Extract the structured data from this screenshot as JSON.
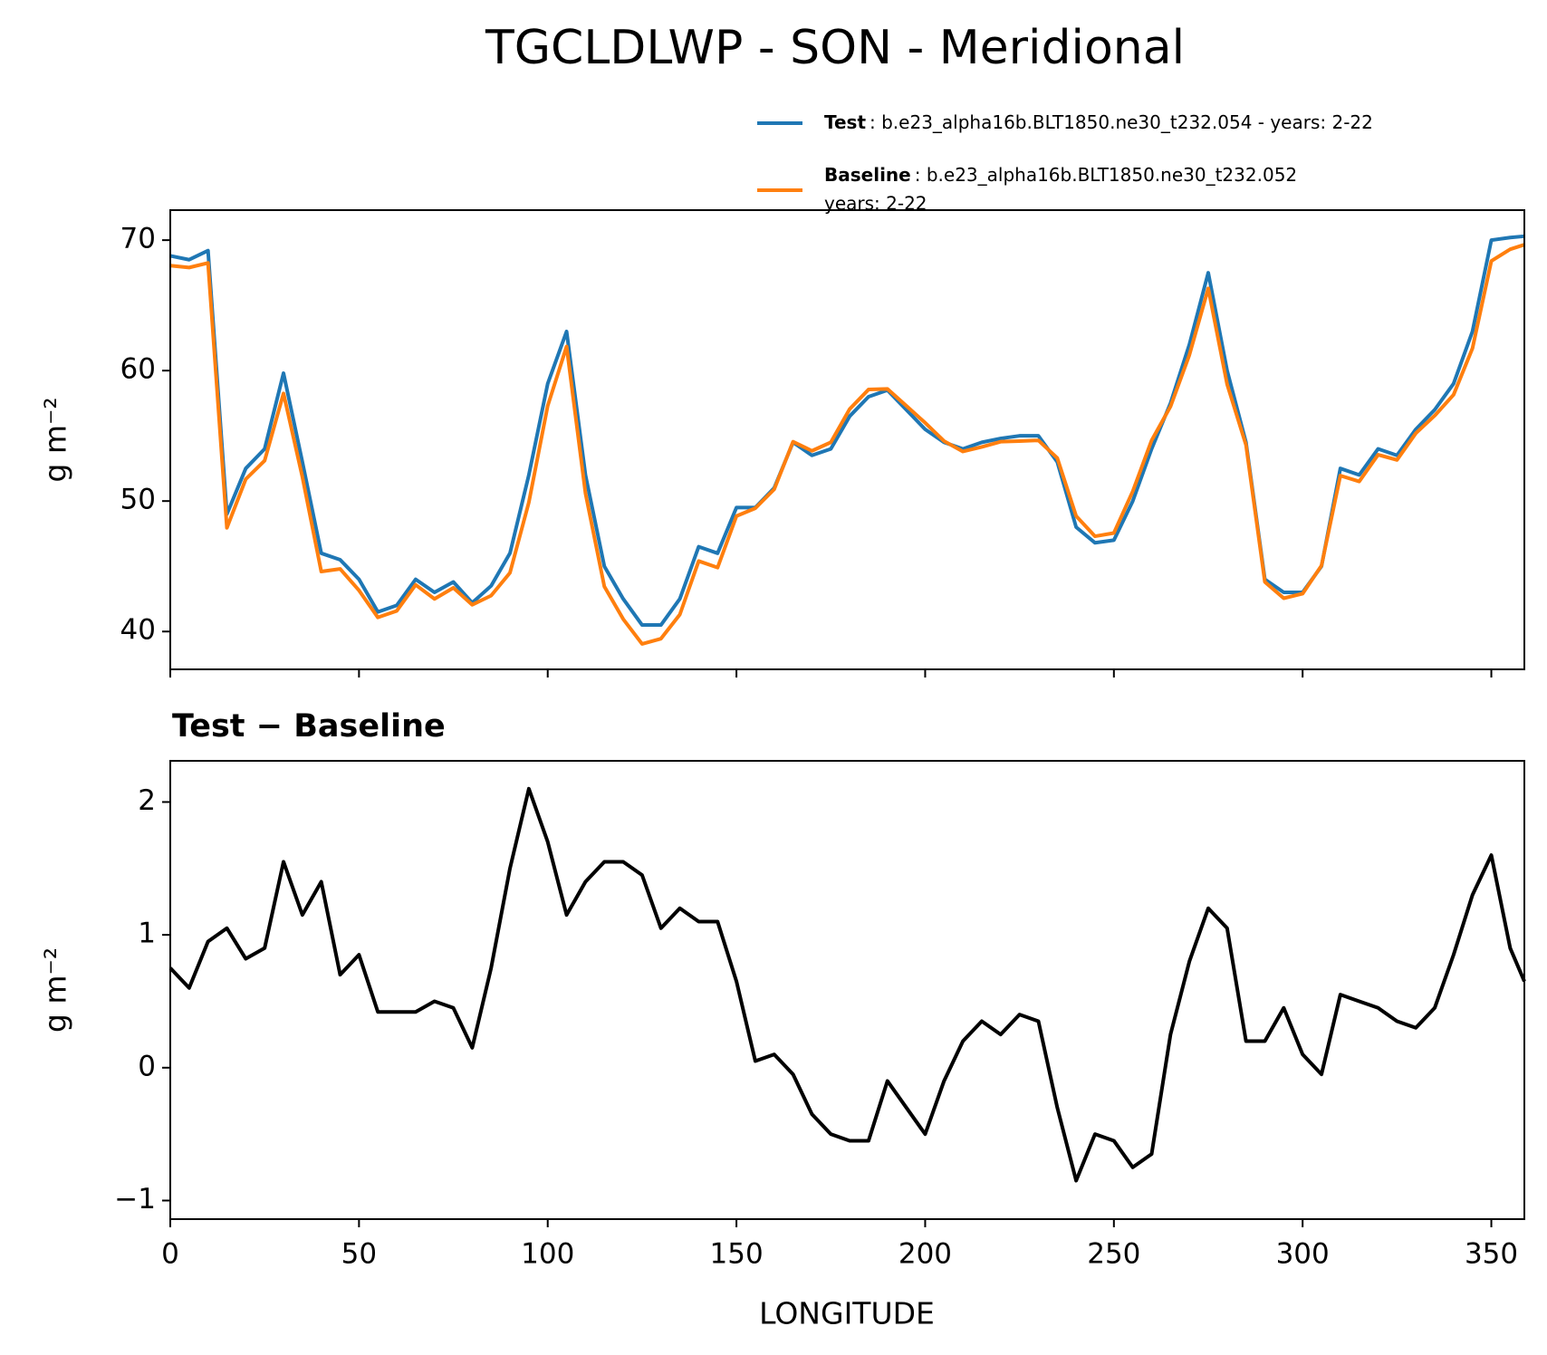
{
  "chart_data": [
    {
      "type": "line",
      "title": "TGCLDLWP - SON - Meridional",
      "ylabel": "g m⁻²",
      "x": [
        0,
        5,
        10,
        15,
        20,
        25,
        30,
        35,
        40,
        45,
        50,
        55,
        60,
        65,
        70,
        75,
        80,
        85,
        90,
        95,
        100,
        105,
        110,
        115,
        120,
        125,
        130,
        135,
        140,
        145,
        150,
        155,
        160,
        165,
        170,
        175,
        180,
        185,
        190,
        195,
        200,
        205,
        210,
        215,
        220,
        225,
        230,
        235,
        240,
        245,
        250,
        255,
        260,
        265,
        270,
        275,
        280,
        285,
        290,
        295,
        300,
        305,
        310,
        315,
        320,
        325,
        330,
        335,
        340,
        345,
        350,
        355,
        358.75
      ],
      "series": [
        {
          "name": "Test",
          "description": [
            ": b.e23_alpha16b.BLT1850.ne30_t232.054 - years: 2-22"
          ],
          "color": "#1f77b4",
          "values": [
            68.8,
            68.5,
            69.2,
            49,
            52.5,
            54,
            59.8,
            53,
            46,
            45.5,
            44,
            41.5,
            42,
            44,
            43,
            43.8,
            42.2,
            43.5,
            46,
            52,
            59,
            63,
            52,
            45,
            42.5,
            40.5,
            40.5,
            42.5,
            46.5,
            46,
            49.5,
            49.5,
            51,
            54.5,
            53.5,
            54,
            56.5,
            58,
            58.5,
            57,
            55.5,
            54.5,
            54,
            54.5,
            54.8,
            55,
            55,
            53,
            48,
            46.8,
            47,
            50,
            54,
            57.5,
            62,
            67.5,
            60,
            54.5,
            44,
            43,
            43,
            45,
            52.5,
            52,
            54,
            53.5,
            55.5,
            57,
            59,
            63,
            70,
            70.2,
            70.3
          ]
        },
        {
          "name": "Baseline",
          "description": [
            ": b.e23_alpha16b.BLT1850.ne30_t232.052",
            "years: 2-22"
          ],
          "color": "#ff7f0e",
          "values": [
            68.05,
            67.9,
            68.25,
            47.95,
            51.68,
            53.1,
            58.25,
            51.85,
            44.6,
            44.8,
            43.15,
            41.08,
            41.58,
            43.58,
            42.5,
            43.35,
            42.05,
            42.75,
            44.5,
            49.9,
            57.3,
            61.85,
            50.6,
            43.45,
            40.95,
            39.05,
            39.45,
            41.3,
            45.4,
            44.9,
            48.85,
            49.45,
            50.9,
            54.55,
            53.85,
            54.5,
            57.05,
            58.55,
            58.6,
            57.3,
            56,
            54.6,
            53.8,
            54.15,
            54.55,
            54.6,
            54.65,
            53.3,
            48.85,
            47.3,
            47.55,
            50.75,
            54.65,
            57.25,
            61.2,
            66.3,
            58.95,
            54.3,
            43.8,
            42.55,
            42.9,
            45.05,
            51.95,
            51.5,
            53.55,
            53.15,
            55.2,
            56.55,
            58.15,
            61.7,
            68.4,
            69.3,
            69.65
          ]
        }
      ],
      "xlim": [
        0,
        358.75
      ],
      "ylim": [
        37.1,
        72.3
      ],
      "yticks": [
        40,
        50,
        60,
        70
      ]
    },
    {
      "type": "line",
      "title": "Test − Baseline",
      "ylabel": "g m⁻²",
      "xlabel": "LONGITUDE",
      "x": [
        0,
        5,
        10,
        15,
        20,
        25,
        30,
        35,
        40,
        45,
        50,
        55,
        60,
        65,
        70,
        75,
        80,
        85,
        90,
        95,
        100,
        105,
        110,
        115,
        120,
        125,
        130,
        135,
        140,
        145,
        150,
        155,
        160,
        165,
        170,
        175,
        180,
        185,
        190,
        195,
        200,
        205,
        210,
        215,
        220,
        225,
        230,
        235,
        240,
        245,
        250,
        255,
        260,
        265,
        270,
        275,
        280,
        285,
        290,
        295,
        300,
        305,
        310,
        315,
        320,
        325,
        330,
        335,
        340,
        345,
        350,
        355,
        358.75
      ],
      "series": [
        {
          "color": "#000000",
          "values": [
            0.75,
            0.6,
            0.95,
            1.05,
            0.82,
            0.9,
            1.55,
            1.15,
            1.4,
            0.7,
            0.85,
            0.42,
            0.42,
            0.42,
            0.5,
            0.45,
            0.15,
            0.75,
            1.5,
            2.1,
            1.7,
            1.15,
            1.4,
            1.55,
            1.55,
            1.45,
            1.05,
            1.2,
            1.1,
            1.1,
            0.65,
            0.05,
            0.1,
            -0.05,
            -0.35,
            -0.5,
            -0.55,
            -0.55,
            -0.1,
            -0.3,
            -0.5,
            -0.1,
            0.2,
            0.35,
            0.25,
            0.4,
            0.35,
            -0.3,
            -0.85,
            -0.5,
            -0.55,
            -0.75,
            -0.65,
            0.25,
            0.8,
            1.2,
            1.05,
            0.2,
            0.2,
            0.45,
            0.1,
            -0.05,
            0.55,
            0.5,
            0.45,
            0.35,
            0.3,
            0.45,
            0.85,
            1.3,
            1.6,
            0.9,
            0.65
          ]
        }
      ],
      "xlim": [
        0,
        358.75
      ],
      "ylim": [
        -1.14,
        2.31
      ],
      "yticks": [
        {
          "value": -1,
          "label": "−1"
        },
        0,
        1,
        2
      ],
      "xticks": [
        0,
        50,
        100,
        150,
        200,
        250,
        300,
        350
      ]
    }
  ]
}
